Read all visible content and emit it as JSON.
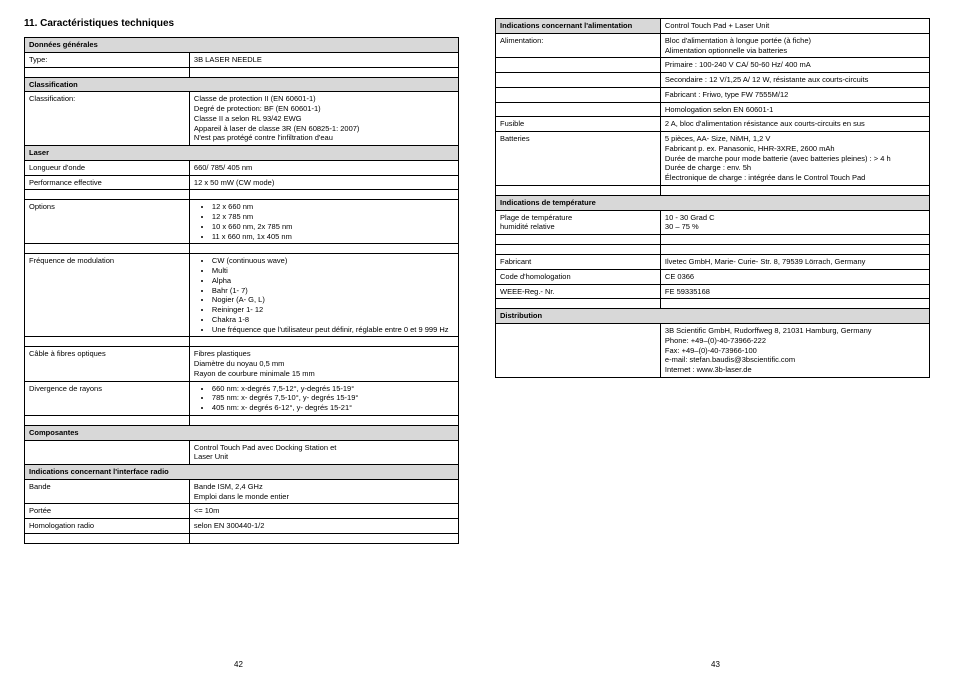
{
  "section_title": "11.     Caractéristiques techniques",
  "page_left_num": "42",
  "page_right_num": "43",
  "left_table": [
    {
      "type": "header",
      "label": "Données générales"
    },
    {
      "type": "row",
      "label": "Type:",
      "value": "3B LASER NEEDLE"
    },
    {
      "type": "spacer"
    },
    {
      "type": "header",
      "label": "Classification"
    },
    {
      "type": "row",
      "label": "Classification:",
      "value": "Classe de protection II (EN 60601-1)\nDegré de protection: BF (EN 60601-1)\nClasse II a selon RL 93/42 EWG\nAppareil à laser de classe 3R (EN 60825-1: 2007)\nN'est pas protégé contre l'infiltration d'eau"
    },
    {
      "type": "header",
      "label": "Laser"
    },
    {
      "type": "row",
      "label": "Longueur d'onde",
      "value": "660/ 785/ 405 nm"
    },
    {
      "type": "row",
      "label": "Performance effective",
      "value": "12 x 50 mW  (CW mode)"
    },
    {
      "type": "spacer"
    },
    {
      "type": "row",
      "label": "Options",
      "bullets": [
        "12 x 660 nm",
        "12 x 785 nm",
        "10 x 660 nm, 2x 785 nm",
        "11 x 660 nm, 1x 405 nm"
      ]
    },
    {
      "type": "spacer"
    },
    {
      "type": "row",
      "label": "Fréquence de modulation",
      "bullets": [
        "CW (continuous wave)",
        "Multi",
        "Alpha",
        "Bahr (1- 7)",
        "Nogier (A- G, L)",
        "Reininger 1- 12",
        "Chakra 1-8",
        "Une fréquence que l'utilisateur peut définir, réglable entre 0 et 9 999 Hz"
      ]
    },
    {
      "type": "spacer"
    },
    {
      "type": "row",
      "label": "Câble à fibres optiques",
      "value": "Fibres plastiques\nDiamètre du noyau 0,5 mm\nRayon de courbure minimale 15 mm"
    },
    {
      "type": "row",
      "label": "Divergence de rayons",
      "bullets": [
        "660 nm: x-degrés 7,5-12°, y-degrés 15-19°",
        "785 nm: x- degrés 7,5-10°, y- degrés 15-19°",
        "405 nm: x- degrés 6-12°, y- degrés 15-21°"
      ]
    },
    {
      "type": "spacer"
    },
    {
      "type": "header",
      "label": "Composantes"
    },
    {
      "type": "row",
      "label": "",
      "value": "Control Touch Pad avec Docking Station et\nLaser Unit"
    },
    {
      "type": "header",
      "label": "Indications concernant l'interface radio"
    },
    {
      "type": "row",
      "label": "Bande",
      "value": "Bande ISM, 2,4 GHz\nEmploi dans le monde entier"
    },
    {
      "type": "row",
      "label": "Portée",
      "value": "<= 10m"
    },
    {
      "type": "row",
      "label": "Homologation radio",
      "value": "selon EN 300440-1/2"
    },
    {
      "type": "spacer"
    }
  ],
  "right_table": [
    {
      "type": "header2",
      "label": "Indications concernant l'alimentation",
      "value": "Control Touch Pad + Laser Unit"
    },
    {
      "type": "row",
      "label": "Alimentation:",
      "value": "Bloc d'alimentation à longue portée (à fiche)\nAlimentation optionnelle via batteries"
    },
    {
      "type": "row",
      "label": "",
      "value": "Primaire : 100-240 V CA/ 50-60 Hz/ 400 mA"
    },
    {
      "type": "row",
      "label": "",
      "value": "Secondaire : 12 V/1,25 A/ 12 W, résistante aux courts-circuits"
    },
    {
      "type": "row",
      "label": "",
      "value": "Fabricant : Friwo, type FW 7555M/12"
    },
    {
      "type": "row",
      "label": "",
      "value": "Homologation selon EN 60601-1"
    },
    {
      "type": "row",
      "label": "Fusible",
      "value": "2 A, bloc d'alimentation résistance aux courts-circuits en sus"
    },
    {
      "type": "row",
      "label": "Batteries",
      "value": "5 pièces, AA- Size, NiMH, 1,2 V\nFabricant p. ex. Panasonic, HHR-3XRE, 2600 mAh\nDurée de marche pour mode batterie (avec batteries pleines) : > 4 h\nDurée de charge : env. 5h\nÉlectronique de charge : intégrée dans le Control Touch Pad"
    },
    {
      "type": "spacer"
    },
    {
      "type": "header",
      "label": "Indications de température"
    },
    {
      "type": "row",
      "label": "Plage de température\nhumidité relative",
      "value": "10 - 30 Grad C\n30 – 75 %"
    },
    {
      "type": "spacer"
    },
    {
      "type": "spacer"
    },
    {
      "type": "row",
      "label": "Fabricant",
      "value": "Ilvetec GmbH, Marie- Curie- Str. 8, 79539 Lörrach, Germany"
    },
    {
      "type": "row",
      "label": "Code d'homologation",
      "value": "CE 0366"
    },
    {
      "type": "row",
      "label": "WEEE-Reg.- Nr.",
      "value": "FE 59335168"
    },
    {
      "type": "spacer"
    },
    {
      "type": "header",
      "label": "Distribution"
    },
    {
      "type": "row",
      "label": "",
      "value": "3B Scientific GmbH, Rudorffweg 8, 21031 Hamburg, Germany\nPhone: +49–(0)-40-73966-222\nFax:  +49–(0)-40-73966-100\ne-mail: stefan.baudis@3bscientific.com\nInternet : www.3b-laser.de"
    }
  ]
}
